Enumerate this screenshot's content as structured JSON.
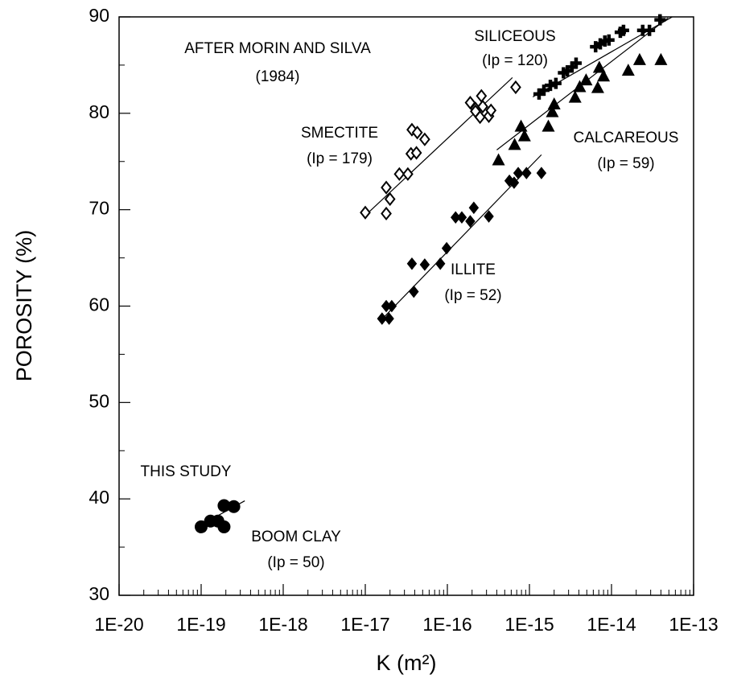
{
  "chart_data": {
    "type": "scatter",
    "x_label": "K (m²)",
    "y_label": "POROSITY (%)",
    "xscale": "log",
    "xlim": [
      1e-20,
      1e-13
    ],
    "xticks": [
      {
        "value": 1e-20,
        "label": "1E-20"
      },
      {
        "value": 1e-19,
        "label": "1E-19"
      },
      {
        "value": 1e-18,
        "label": "1E-18"
      },
      {
        "value": 1e-17,
        "label": "1E-17"
      },
      {
        "value": 1e-16,
        "label": "1E-16"
      },
      {
        "value": 1e-15,
        "label": "1E-15"
      },
      {
        "value": 1e-14,
        "label": "1E-14"
      },
      {
        "value": 1e-13,
        "label": "1E-13"
      }
    ],
    "ylim": [
      30,
      90
    ],
    "yticks": [
      30,
      40,
      50,
      60,
      70,
      80,
      90
    ],
    "annotations": [
      "AFTER MORIN AND SILVA",
      "(1984)",
      "THIS STUDY"
    ],
    "series": [
      {
        "name": "SMECTITE",
        "note": "(Ip = 179)",
        "marker": "diamond-open",
        "color": "#000000",
        "x": [
          1e-17,
          1.8e-17,
          1.8e-17,
          2e-17,
          2.6e-17,
          3.3e-17,
          3.7e-17,
          4.3e-17,
          3.6e-17,
          4.2e-17,
          5.3e-17,
          1.9e-16,
          2.2e-16,
          2.2e-16,
          2.7e-16,
          2.5e-16,
          3.2e-16,
          3.4e-16,
          2.6e-16,
          6.8e-16
        ],
        "values": [
          69.7,
          69.6,
          72.3,
          71.1,
          73.7,
          73.7,
          78.3,
          78.0,
          75.8,
          75.9,
          77.3,
          81.1,
          80.5,
          80.2,
          80.7,
          79.6,
          79.7,
          80.3,
          81.8,
          82.7
        ],
        "fit": {
          "x": [
            1e-17,
            6.2e-16
          ],
          "y": [
            69.4,
            83.7
          ]
        }
      },
      {
        "name": "ILLITE",
        "note": "(Ip = 52)",
        "marker": "diamond",
        "color": "#000000",
        "x": [
          1.6e-17,
          1.95e-17,
          1.8e-17,
          2.1e-17,
          3.7e-17,
          3.9e-17,
          5.3e-17,
          8.2e-17,
          9.8e-17,
          1.26e-16,
          1.5e-16,
          1.9e-16,
          2.1e-16,
          3.2e-16,
          5.7e-16,
          6.5e-16,
          7.3e-16,
          9.2e-16,
          1.4e-15
        ],
        "values": [
          58.7,
          58.7,
          60.0,
          60.0,
          64.4,
          61.5,
          64.3,
          64.4,
          66.0,
          69.2,
          69.2,
          68.8,
          70.2,
          69.3,
          73.0,
          72.8,
          73.8,
          73.8,
          73.8
        ],
        "fit": {
          "x": [
            1.5e-17,
            1.4e-15
          ],
          "y": [
            58.4,
            75.7
          ]
        }
      },
      {
        "name": "SILICEOUS",
        "note": "(Ip = 120)",
        "marker": "plus",
        "color": "#000000",
        "x": [
          1.31e-15,
          1.5e-15,
          1.8e-15,
          2.1e-15,
          2.6e-15,
          2.9e-15,
          3.3e-15,
          3.7e-15,
          6.4e-15,
          7.3e-15,
          8.3e-15,
          9.3e-15,
          1.28e-14,
          1.4e-14,
          2.4e-14,
          2.9e-14,
          3.9e-14
        ],
        "values": [
          82.0,
          82.4,
          82.9,
          83.1,
          84.2,
          84.4,
          84.8,
          85.2,
          86.9,
          87.2,
          87.5,
          87.6,
          88.4,
          88.6,
          88.6,
          88.6,
          89.7
        ],
        "fit": {
          "x": [
            1.1e-15,
            5.5e-14
          ],
          "y": [
            81.7,
            90
          ]
        }
      },
      {
        "name": "CALCAREOUS",
        "note": "(Ip = 59)",
        "marker": "triangle",
        "color": "#000000",
        "x": [
          4.2e-16,
          6.6e-16,
          7.9e-16,
          8.7e-16,
          1.7e-15,
          2e-15,
          1.9e-15,
          3.6e-15,
          4.1e-15,
          4.9e-15,
          6.8e-15,
          7.1e-15,
          8e-15,
          1.6e-14,
          2.2e-14,
          4e-14
        ],
        "values": [
          75.1,
          76.7,
          78.6,
          77.6,
          78.6,
          80.9,
          80.1,
          81.6,
          82.7,
          83.4,
          82.6,
          84.7,
          83.8,
          84.4,
          85.5,
          85.5
        ],
        "fit": {
          "x": [
            4e-16,
            4.9e-14
          ],
          "y": [
            76.2,
            89.9
          ]
        }
      },
      {
        "name": "BOOM CLAY",
        "note": "(Ip = 50)",
        "marker": "circle",
        "color": "#000000",
        "x": [
          1e-19,
          1.3e-19,
          1.6e-19,
          1.9e-19,
          1.9e-19,
          2.5e-19
        ],
        "values": [
          37.1,
          37.7,
          37.7,
          37.1,
          39.3,
          39.2
        ],
        "fit": {
          "x": [
            1.1e-19,
            3.4e-19
          ],
          "y": [
            37.5,
            39.8
          ]
        }
      }
    ]
  }
}
